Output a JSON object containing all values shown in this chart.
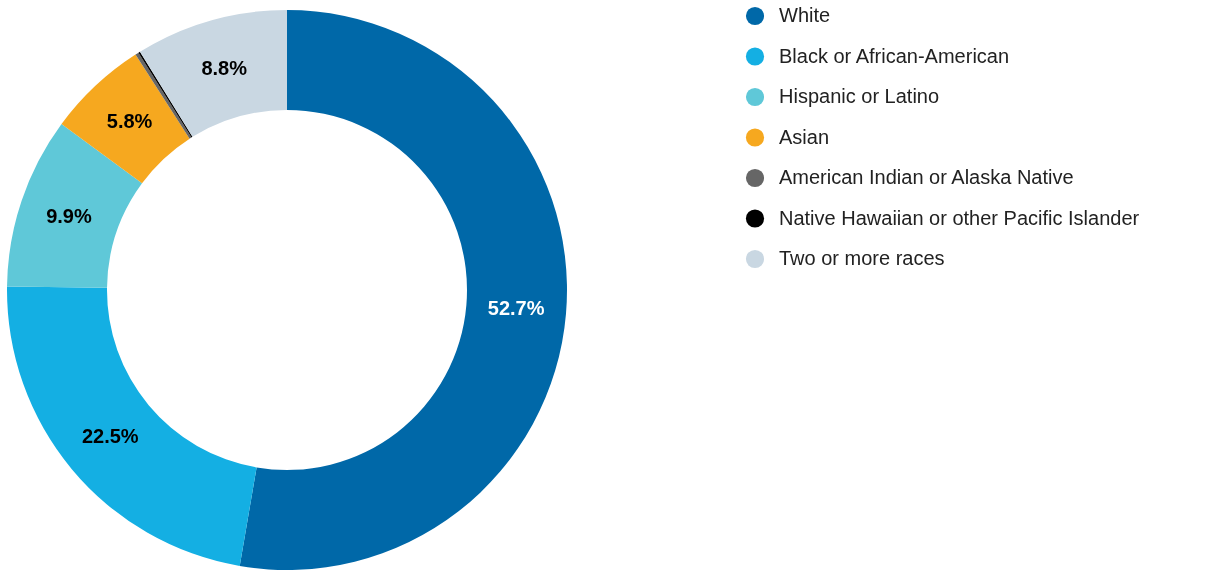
{
  "chart_data": {
    "type": "donut",
    "categories": [
      "White",
      "Black or African-American",
      "Hispanic or Latino",
      "Asian",
      "American Indian or Alaska Native",
      "Native Hawaiian or other Pacific Islander",
      "Two or more races"
    ],
    "values": [
      52.7,
      22.5,
      9.9,
      5.8,
      0.2,
      0.1,
      8.8
    ],
    "colors": [
      "#0068a8",
      "#14afe3",
      "#5fc8d8",
      "#f6a81f",
      "#666666",
      "#000000",
      "#c9d7e2"
    ],
    "value_labels": [
      "52.7%",
      "22.5%",
      "9.9%",
      "5.8%",
      null,
      null,
      "8.8%"
    ],
    "legend": "top right"
  }
}
